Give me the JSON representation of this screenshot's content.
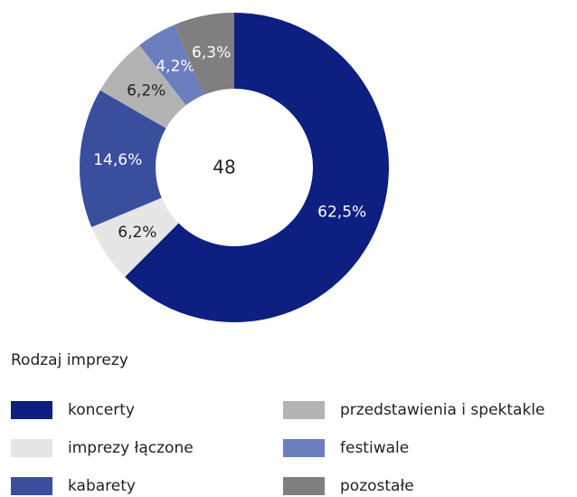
{
  "chart_data": {
    "type": "donut",
    "center_label": 48,
    "legend_title": "Rodzaj imprezy",
    "categories": [
      "koncerty",
      "imprezy łączone",
      "kabarety",
      "przedstawienia i spektakle",
      "festiwale",
      "pozostałe"
    ],
    "values": [
      62.5,
      6.2,
      14.6,
      6.2,
      4.2,
      6.3
    ],
    "value_labels": [
      "62,5%",
      "6,2%",
      "14,6%",
      "6,2%",
      "4,2%",
      "6,3%"
    ],
    "colors": [
      "#0d1f80",
      "#e6e6e6",
      "#3a4e9e",
      "#b3b3b3",
      "#6b7fbf",
      "#7f7f7f"
    ]
  }
}
